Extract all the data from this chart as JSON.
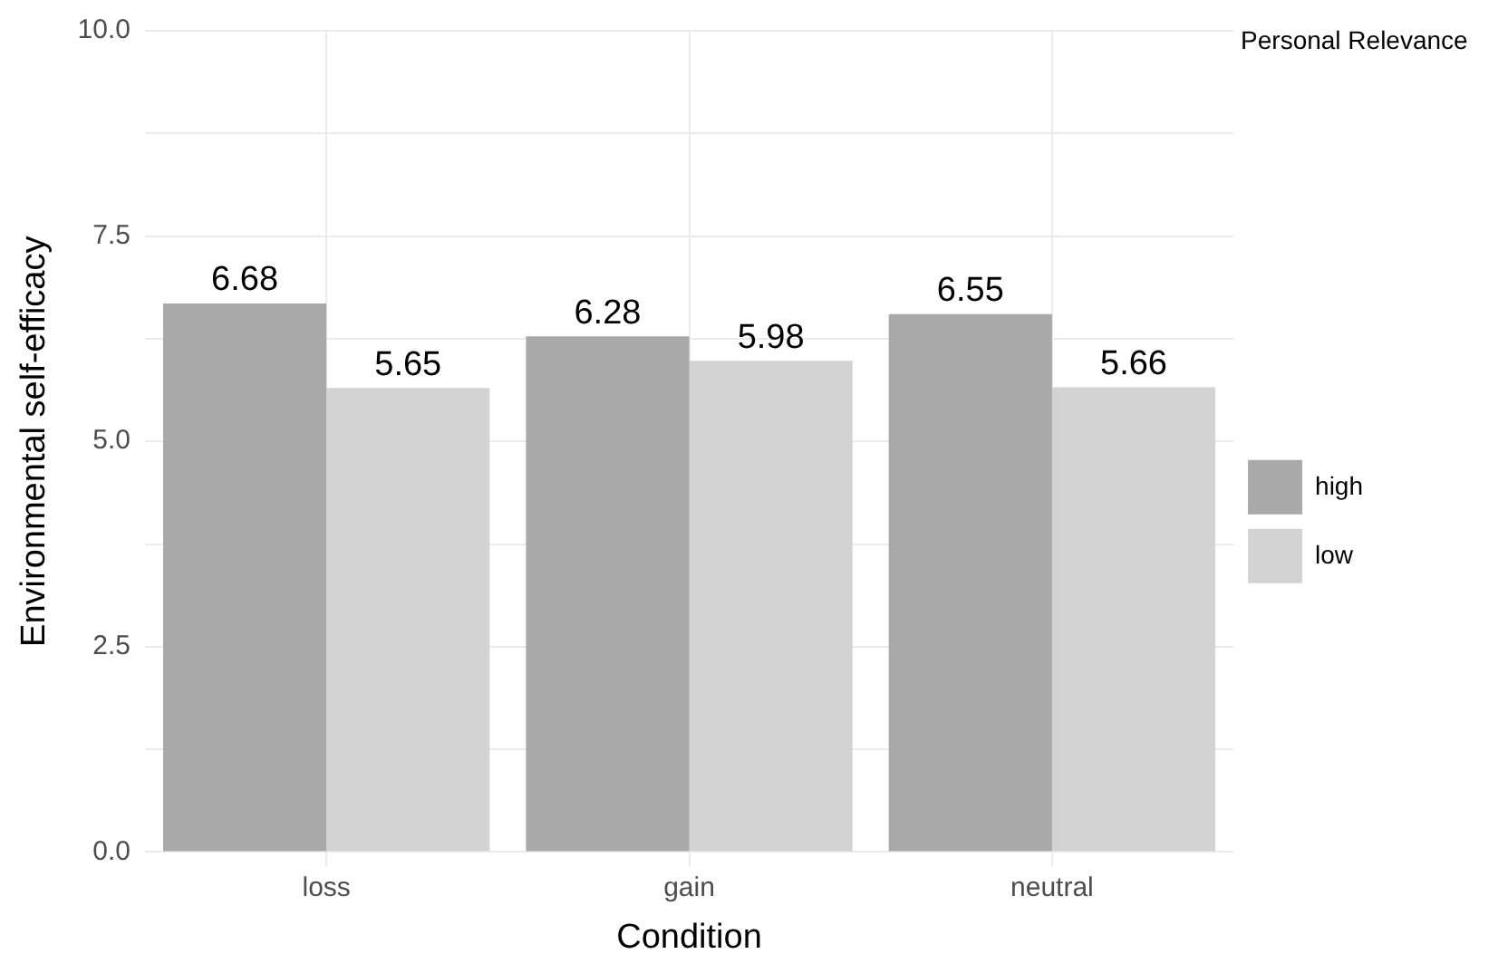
{
  "chart_data": {
    "type": "bar",
    "xlabel": "Condition",
    "ylabel": "Environmental self-efficacy",
    "legend_title": "Personal Relevance",
    "categories": [
      "loss",
      "gain",
      "neutral"
    ],
    "series": [
      {
        "name": "high",
        "color": "#a9a9a9",
        "values": [
          6.68,
          6.28,
          6.55
        ]
      },
      {
        "name": "low",
        "color": "#d3d3d3",
        "values": [
          5.65,
          5.98,
          5.66
        ]
      }
    ],
    "ylim": [
      0,
      10
    ],
    "yticks": [
      {
        "value": 0,
        "label": "0.0"
      },
      {
        "value": 1.25,
        "label": null
      },
      {
        "value": 2.5,
        "label": "2.5"
      },
      {
        "value": 3.75,
        "label": null
      },
      {
        "value": 5,
        "label": "5.0"
      },
      {
        "value": 6.25,
        "label": null
      },
      {
        "value": 7.5,
        "label": "7.5"
      },
      {
        "value": 8.75,
        "label": null
      },
      {
        "value": 10,
        "label": "10.0"
      }
    ],
    "grid": true,
    "legend": "right",
    "data_labels": true
  }
}
